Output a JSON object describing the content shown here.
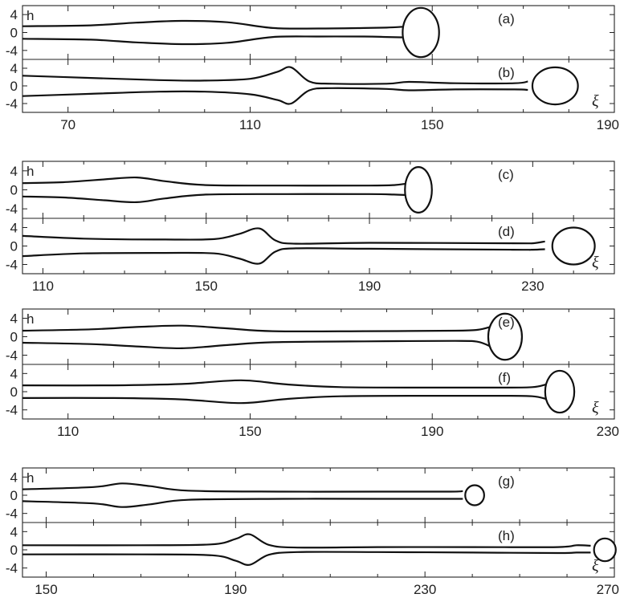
{
  "figure": {
    "y_var_label": "h",
    "x_var_label": "ξ"
  },
  "chart_data": [
    {
      "type": "line",
      "panel_pair": [
        "(a)",
        "(b)"
      ],
      "xlim": [
        60,
        190
      ],
      "ylim": [
        -6,
        6
      ],
      "x_ticks": [
        70,
        110,
        150,
        190
      ],
      "y_ticks": [
        4,
        0,
        -4
      ],
      "panels": [
        {
          "label": "(a)",
          "show_h": true,
          "show_xi": false,
          "upper": [
            [
              60,
              1.4
            ],
            [
              75,
              1.6
            ],
            [
              85,
              2.2
            ],
            [
              95,
              2.6
            ],
            [
              105,
              2.3
            ],
            [
              115,
              1.0
            ],
            [
              125,
              0.9
            ],
            [
              135,
              1.0
            ],
            [
              140,
              1.1
            ],
            [
              144,
              1.3
            ]
          ],
          "lower": [
            [
              60,
              -1.4
            ],
            [
              75,
              -1.6
            ],
            [
              85,
              -2.2
            ],
            [
              95,
              -2.6
            ],
            [
              105,
              -2.3
            ],
            [
              115,
              -1.0
            ],
            [
              125,
              -0.9
            ],
            [
              135,
              -0.9
            ],
            [
              140,
              -1.0
            ],
            [
              144,
              -1.1
            ]
          ],
          "drops": [
            {
              "cx": 147.5,
              "cy": 0.0,
              "rx": 4.0,
              "ry": 5.5
            }
          ]
        },
        {
          "label": "(b)",
          "show_h": false,
          "show_xi": true,
          "upper": [
            [
              60,
              2.3
            ],
            [
              75,
              1.8
            ],
            [
              90,
              1.3
            ],
            [
              100,
              1.2
            ],
            [
              110,
              1.6
            ],
            [
              116,
              3.2
            ],
            [
              119,
              4.2
            ],
            [
              123,
              1.0
            ],
            [
              128,
              0.5
            ],
            [
              140,
              0.5
            ],
            [
              145,
              0.9
            ],
            [
              155,
              0.6
            ],
            [
              168,
              0.6
            ],
            [
              171,
              1.0
            ]
          ],
          "lower": [
            [
              60,
              -2.3
            ],
            [
              75,
              -1.8
            ],
            [
              90,
              -1.3
            ],
            [
              100,
              -1.3
            ],
            [
              110,
              -1.9
            ],
            [
              116,
              -3.2
            ],
            [
              119,
              -4.0
            ],
            [
              123,
              -1.0
            ],
            [
              128,
              -0.5
            ],
            [
              140,
              -0.7
            ],
            [
              145,
              -1.0
            ],
            [
              155,
              -0.8
            ],
            [
              168,
              -0.8
            ],
            [
              171,
              -0.9
            ]
          ],
          "drops": [
            {
              "cx": 177,
              "cy": 0.0,
              "rx": 5.0,
              "ry": 4.2
            }
          ]
        }
      ]
    },
    {
      "type": "line",
      "panel_pair": [
        "(c)",
        "(d)"
      ],
      "xlim": [
        105,
        250
      ],
      "ylim": [
        -6,
        6
      ],
      "x_ticks": [
        110,
        150,
        190,
        230
      ],
      "y_ticks": [
        4,
        0,
        -4
      ],
      "panels": [
        {
          "label": "(c)",
          "show_h": true,
          "show_xi": false,
          "upper": [
            [
              105,
              1.4
            ],
            [
              115,
              1.6
            ],
            [
              125,
              2.2
            ],
            [
              133,
              2.6
            ],
            [
              140,
              1.8
            ],
            [
              150,
              1.0
            ],
            [
              170,
              0.9
            ],
            [
              190,
              0.9
            ],
            [
              196,
              1.0
            ],
            [
              199,
              1.3
            ]
          ],
          "lower": [
            [
              105,
              -1.4
            ],
            [
              115,
              -1.6
            ],
            [
              125,
              -2.2
            ],
            [
              133,
              -2.6
            ],
            [
              140,
              -1.8
            ],
            [
              150,
              -1.0
            ],
            [
              170,
              -0.9
            ],
            [
              190,
              -0.9
            ],
            [
              196,
              -1.0
            ],
            [
              199,
              -1.1
            ]
          ],
          "drops": [
            {
              "cx": 202,
              "cy": 0.0,
              "rx": 3.3,
              "ry": 4.8
            }
          ]
        },
        {
          "label": "(d)",
          "show_h": false,
          "show_xi": true,
          "upper": [
            [
              105,
              2.2
            ],
            [
              120,
              1.6
            ],
            [
              140,
              1.4
            ],
            [
              152,
              1.5
            ],
            [
              158,
              2.6
            ],
            [
              163,
              3.8
            ],
            [
              167,
              1.2
            ],
            [
              172,
              0.5
            ],
            [
              190,
              0.7
            ],
            [
              225,
              0.6
            ],
            [
              230,
              0.6
            ],
            [
              233,
              1.0
            ]
          ],
          "lower": [
            [
              105,
              -2.2
            ],
            [
              120,
              -1.6
            ],
            [
              140,
              -1.5
            ],
            [
              152,
              -1.6
            ],
            [
              158,
              -2.7
            ],
            [
              163,
              -3.8
            ],
            [
              167,
              -1.2
            ],
            [
              172,
              -0.5
            ],
            [
              190,
              -0.6
            ],
            [
              225,
              -0.8
            ],
            [
              230,
              -0.8
            ],
            [
              233,
              -0.7
            ]
          ],
          "drops": [
            {
              "cx": 240,
              "cy": 0.0,
              "rx": 5.2,
              "ry": 4.0
            }
          ]
        }
      ]
    },
    {
      "type": "line",
      "panel_pair": [
        "(e)",
        "(f)"
      ],
      "xlim": [
        100,
        230
      ],
      "ylim": [
        -6,
        6
      ],
      "x_ticks": [
        110,
        150,
        190,
        230
      ],
      "y_ticks": [
        4,
        0,
        -4
      ],
      "panels": [
        {
          "label": "(e)",
          "show_h": true,
          "show_xi": false,
          "upper": [
            [
              100,
              1.3
            ],
            [
              115,
              1.6
            ],
            [
              125,
              2.1
            ],
            [
              135,
              2.4
            ],
            [
              145,
              1.8
            ],
            [
              155,
              1.2
            ],
            [
              175,
              1.2
            ],
            [
              195,
              1.3
            ],
            [
              200,
              1.5
            ],
            [
              203,
              2.2
            ]
          ],
          "lower": [
            [
              100,
              -1.3
            ],
            [
              115,
              -1.6
            ],
            [
              125,
              -2.1
            ],
            [
              135,
              -2.5
            ],
            [
              145,
              -1.8
            ],
            [
              155,
              -1.2
            ],
            [
              175,
              -1.0
            ],
            [
              195,
              -0.9
            ],
            [
              200,
              -1.1
            ],
            [
              203,
              -2.2
            ]
          ],
          "drops": [
            {
              "cx": 206,
              "cy": 0.0,
              "rx": 3.7,
              "ry": 5.0
            }
          ]
        },
        {
          "label": "(f)",
          "show_h": false,
          "show_xi": true,
          "upper": [
            [
              100,
              1.4
            ],
            [
              120,
              1.4
            ],
            [
              135,
              1.7
            ],
            [
              148,
              2.5
            ],
            [
              158,
              1.6
            ],
            [
              170,
              1.0
            ],
            [
              190,
              0.9
            ],
            [
              205,
              0.9
            ],
            [
              212,
              1.0
            ],
            [
              215,
              1.6
            ]
          ],
          "lower": [
            [
              100,
              -1.4
            ],
            [
              120,
              -1.4
            ],
            [
              135,
              -1.7
            ],
            [
              148,
              -2.5
            ],
            [
              158,
              -1.6
            ],
            [
              170,
              -1.0
            ],
            [
              190,
              -0.9
            ],
            [
              205,
              -0.9
            ],
            [
              212,
              -1.0
            ],
            [
              215,
              -1.6
            ]
          ],
          "drops": [
            {
              "cx": 218,
              "cy": 0.0,
              "rx": 3.2,
              "ry": 4.6
            }
          ]
        }
      ]
    },
    {
      "type": "line",
      "panel_pair": [
        "(g)",
        "(h)"
      ],
      "xlim": [
        145,
        270
      ],
      "ylim": [
        -6,
        6
      ],
      "x_ticks": [
        150,
        190,
        230,
        270
      ],
      "y_ticks": [
        4,
        0,
        -4
      ],
      "panels": [
        {
          "label": "(g)",
          "show_h": true,
          "show_xi": false,
          "upper": [
            [
              145,
              1.3
            ],
            [
              160,
              1.8
            ],
            [
              166,
              2.6
            ],
            [
              172,
              2.0
            ],
            [
              180,
              1.0
            ],
            [
              200,
              0.8
            ],
            [
              220,
              0.8
            ],
            [
              235,
              0.8
            ],
            [
              238,
              0.9
            ]
          ],
          "lower": [
            [
              145,
              -1.3
            ],
            [
              160,
              -1.8
            ],
            [
              166,
              -2.6
            ],
            [
              172,
              -2.0
            ],
            [
              180,
              -1.0
            ],
            [
              200,
              -0.8
            ],
            [
              220,
              -0.8
            ],
            [
              235,
              -0.8
            ],
            [
              238,
              -0.8
            ]
          ],
          "drops": [
            {
              "cx": 240.5,
              "cy": 0.0,
              "rx": 2.0,
              "ry": 2.2
            }
          ]
        },
        {
          "label": "(h)",
          "show_h": false,
          "show_xi": true,
          "upper": [
            [
              145,
              1.0
            ],
            [
              170,
              1.0
            ],
            [
              185,
              1.2
            ],
            [
              190,
              2.4
            ],
            [
              193,
              3.4
            ],
            [
              197,
              1.1
            ],
            [
              203,
              0.5
            ],
            [
              220,
              0.6
            ],
            [
              240,
              0.6
            ],
            [
              258,
              0.6
            ],
            [
              262,
              1.0
            ],
            [
              265,
              0.9
            ]
          ],
          "lower": [
            [
              145,
              -1.0
            ],
            [
              170,
              -1.0
            ],
            [
              185,
              -1.2
            ],
            [
              190,
              -2.4
            ],
            [
              193,
              -3.3
            ],
            [
              197,
              -1.1
            ],
            [
              203,
              -0.5
            ],
            [
              220,
              -0.5
            ],
            [
              240,
              -0.6
            ],
            [
              258,
              -0.7
            ],
            [
              262,
              -0.6
            ],
            [
              265,
              -0.6
            ]
          ],
          "drops": [
            {
              "cx": 268,
              "cy": 0.0,
              "rx": 2.3,
              "ry": 2.5
            }
          ]
        }
      ]
    }
  ]
}
